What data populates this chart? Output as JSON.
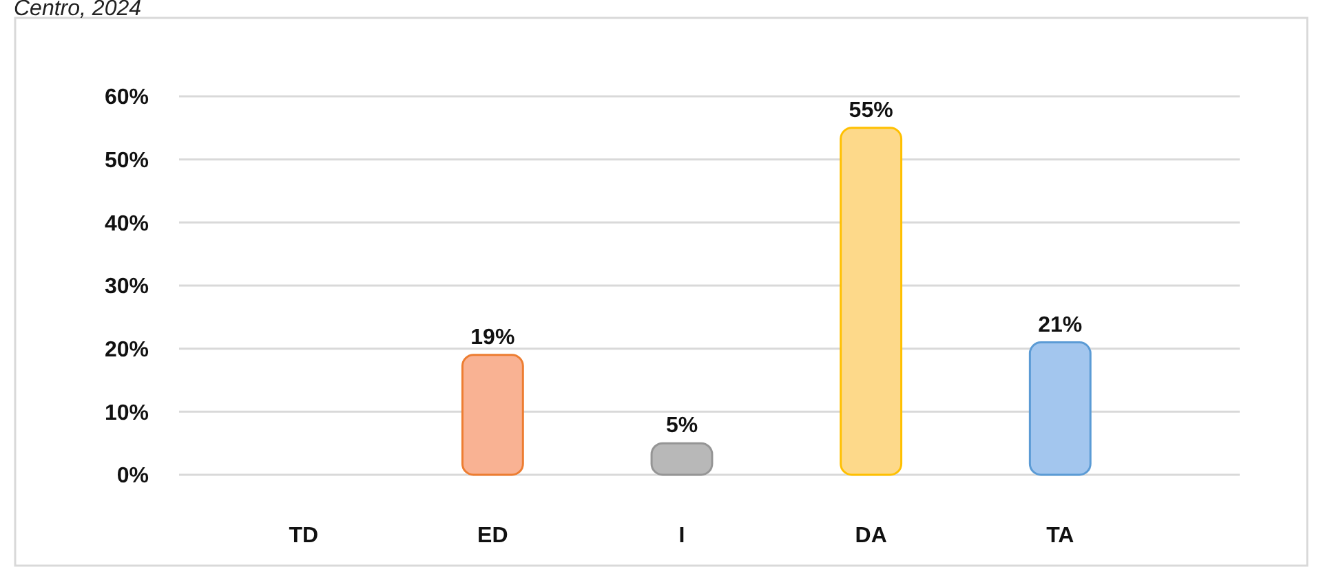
{
  "chart_data": {
    "type": "bar",
    "title": "Centro, 2024",
    "categories": [
      "TD",
      "ED",
      "I",
      "DA",
      "TA"
    ],
    "values": [
      0,
      19,
      5,
      55,
      21
    ],
    "colors": [
      "#a5a5a5",
      "#f9b293",
      "#b8b8b8",
      "#fdd98a",
      "#a3c6ee"
    ],
    "value_labels": [
      null,
      "19%",
      "5%",
      "55%",
      "21%"
    ],
    "ylim": [
      0,
      60
    ],
    "yticks": [
      {
        "value": 0,
        "label": "0%"
      },
      {
        "value": 10,
        "label": "10%"
      },
      {
        "value": 20,
        "label": "20%"
      },
      {
        "value": 30,
        "label": "30%"
      },
      {
        "value": 40,
        "label": "40%"
      },
      {
        "value": 50,
        "label": "50%"
      },
      {
        "value": 60,
        "label": "60%"
      }
    ],
    "grid": true
  }
}
